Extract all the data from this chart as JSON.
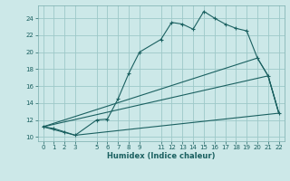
{
  "title": "",
  "xlabel": "Humidex (Indice chaleur)",
  "ylabel": "",
  "background_color": "#cce8e8",
  "grid_color": "#9dc8c8",
  "line_color": "#1a6060",
  "xlim": [
    -0.5,
    22.5
  ],
  "ylim": [
    9.5,
    25.5
  ],
  "xticks": [
    0,
    1,
    2,
    3,
    5,
    6,
    7,
    8,
    9,
    11,
    12,
    13,
    14,
    15,
    16,
    17,
    18,
    19,
    20,
    21,
    22
  ],
  "yticks": [
    10,
    12,
    14,
    16,
    18,
    20,
    22,
    24
  ],
  "series1_x": [
    0,
    1,
    2,
    3,
    5,
    6,
    7,
    8,
    9,
    11,
    12,
    13,
    14,
    15,
    16,
    17,
    18,
    19,
    20,
    21,
    22
  ],
  "series1_y": [
    11.2,
    11.0,
    10.6,
    10.2,
    12.0,
    12.1,
    14.5,
    17.5,
    20.0,
    21.5,
    23.5,
    23.3,
    22.7,
    24.8,
    24.0,
    23.3,
    22.8,
    22.5,
    19.3,
    17.2,
    12.8
  ],
  "series2_x": [
    0,
    20,
    21,
    22
  ],
  "series2_y": [
    11.2,
    19.3,
    17.2,
    12.8
  ],
  "series3_x": [
    0,
    21,
    22
  ],
  "series3_y": [
    11.2,
    17.2,
    12.8
  ],
  "series4_x": [
    0,
    3,
    22
  ],
  "series4_y": [
    11.2,
    10.2,
    12.8
  ]
}
